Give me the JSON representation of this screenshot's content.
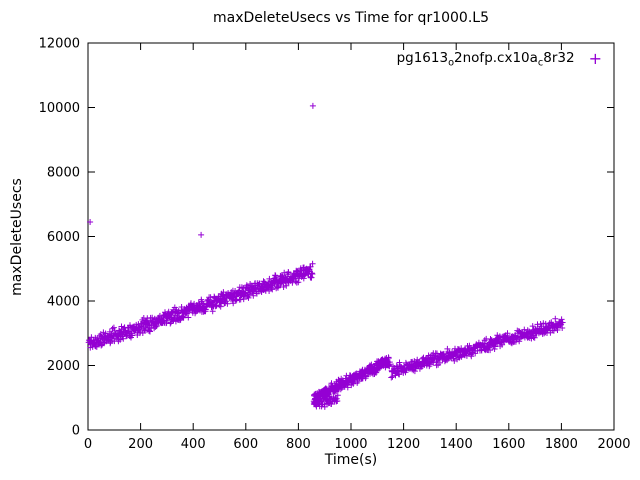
{
  "window": {
    "title": "maxDeleteUsecs vs Time for qr1000.L5"
  },
  "chart_data": {
    "type": "scatter",
    "title": "maxDeleteUsecs vs Time for qr1000.L5",
    "xlabel": "Time(s)",
    "ylabel": "maxDeleteUsecs",
    "xlim": [
      0,
      2000
    ],
    "ylim": [
      0,
      12000
    ],
    "xticks": [
      0,
      200,
      400,
      600,
      800,
      1000,
      1200,
      1400,
      1600,
      1800,
      2000
    ],
    "yticks": [
      0,
      2000,
      4000,
      6000,
      8000,
      10000,
      12000
    ],
    "grid": false,
    "legend_position": "top-right",
    "marker": {
      "shape": "plus",
      "color": "#9400D3",
      "size": 6
    },
    "legend": {
      "label_plain": "pg1613_o2nofp.cx10a_c8r32",
      "parts": {
        "p0": "pg1613",
        "s1": "o",
        "p2": "2nofp.cx10a",
        "s3": "c",
        "p4": "8r32"
      }
    },
    "series": [
      {
        "name": "pg1613_o2nofp.cx10a_c8r32",
        "trend_segments": [
          {
            "x0": 2,
            "x1": 855,
            "y0": 2680,
            "y1": 4950,
            "spread": 260,
            "count": 650,
            "seed": 11
          },
          {
            "x0": 858,
            "x1": 1148,
            "y0": 1000,
            "y1": 2150,
            "spread": 210,
            "count": 300,
            "seed": 22
          },
          {
            "x0": 858,
            "x1": 950,
            "y0": 750,
            "y1": 1000,
            "spread": 160,
            "count": 50,
            "seed": 33
          },
          {
            "x0": 1152,
            "x1": 1805,
            "y0": 1800,
            "y1": 3300,
            "spread": 230,
            "count": 430,
            "seed": 44
          }
        ],
        "outliers": [
          [
            8,
            6450
          ],
          [
            430,
            6050
          ],
          [
            855,
            10050
          ]
        ]
      }
    ]
  }
}
